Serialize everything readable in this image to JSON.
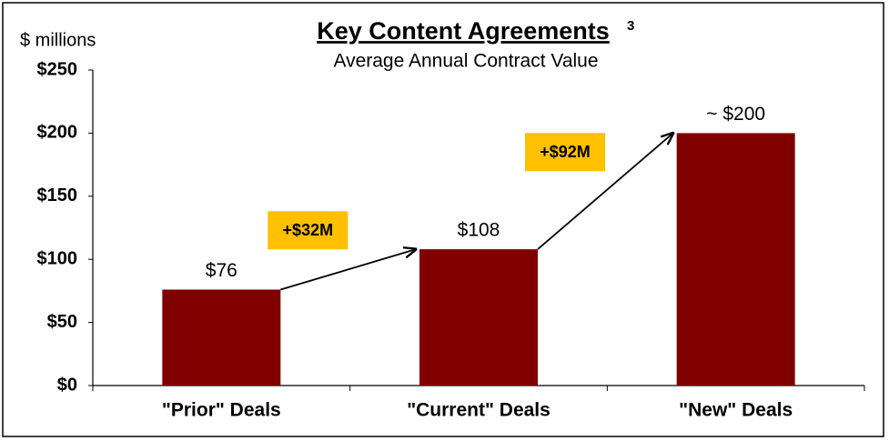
{
  "chart_data": {
    "type": "bar",
    "title": "Key Content Agreements",
    "title_note": "3",
    "subtitle": "Average Annual Contract Value",
    "y_label": "$ millions",
    "categories": [
      "\"Prior\" Deals",
      "\"Current\" Deals",
      "\"New\" Deals"
    ],
    "values": [
      76,
      108,
      200
    ],
    "value_labels": [
      "$76",
      "$108",
      "~ $200"
    ],
    "color": "#800000",
    "ylim": [
      0,
      250
    ],
    "yticks": [
      {
        "value": 0,
        "label": "$0"
      },
      {
        "value": 50,
        "label": "$50"
      },
      {
        "value": 100,
        "label": "$100"
      },
      {
        "value": 150,
        "label": "$150"
      },
      {
        "value": 200,
        "label": "$200"
      },
      {
        "value": 250,
        "label": "$250"
      }
    ],
    "grid": false,
    "annotations": [
      "+$32M",
      "+$92M"
    ],
    "annotation_color": "#ffc000"
  }
}
